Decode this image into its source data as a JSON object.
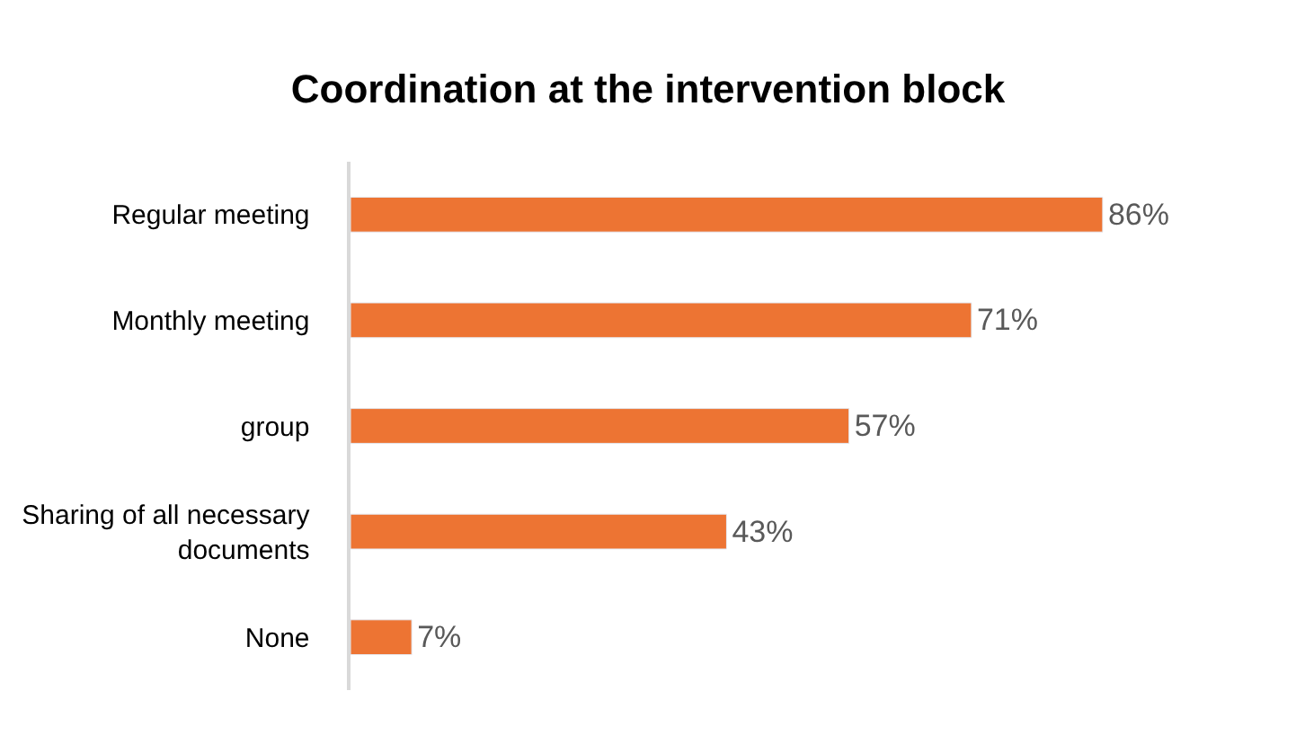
{
  "chart_data": {
    "type": "bar",
    "orientation": "horizontal",
    "title": "Coordination at the intervention block",
    "categories": [
      "Regular meeting",
      "Monthly meeting",
      "group",
      "Sharing of all necessary documents",
      "None"
    ],
    "values": [
      86,
      71,
      57,
      43,
      7
    ],
    "value_labels": [
      "86%",
      "71%",
      "57%",
      "43%",
      "7%"
    ],
    "color": "#ed7433"
  }
}
